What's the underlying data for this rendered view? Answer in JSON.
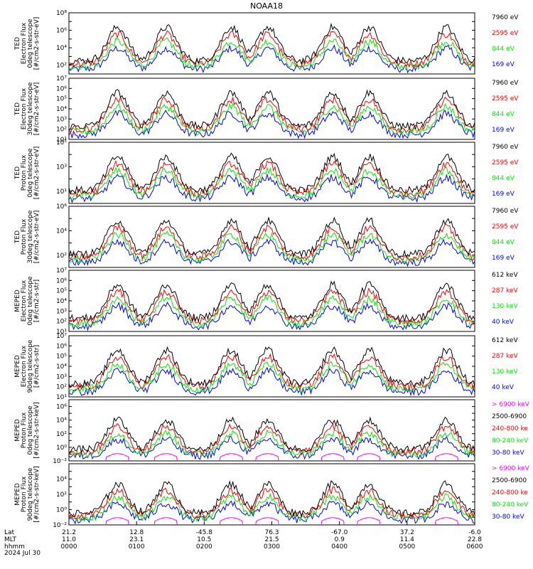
{
  "title": "NOAA18",
  "colors": {
    "black": "#000000",
    "red": "#ff0000",
    "green": "#00ee00",
    "blue": "#0000ff",
    "magenta": "#ff00ff"
  },
  "chart_data": {
    "type": "line",
    "title": "NOAA18",
    "x_ticks": [
      {
        "lat": "21.2",
        "mlt": "11.0",
        "hhmm": "0000"
      },
      {
        "lat": "12.8",
        "mlt": "23.1",
        "hhmm": "0100"
      },
      {
        "lat": "-45.8",
        "mlt": "10.5",
        "hhmm": "0200"
      },
      {
        "lat": "76.3",
        "mlt": "21.5",
        "hhmm": "0300"
      },
      {
        "lat": "-67.0",
        "mlt": "0.9",
        "hhmm": "0400"
      },
      {
        "lat": "37.2",
        "mlt": "11.4",
        "hhmm": "0500"
      },
      {
        "lat": "-6.0",
        "mlt": "22.8",
        "hhmm": "0600"
      }
    ],
    "x_row_labels": [
      "Lat",
      "MLT",
      "hhmm"
    ],
    "date": "2024 Jul 30",
    "xlim": [
      "0000",
      "0600"
    ],
    "panels": [
      {
        "ylabel": [
          "TED",
          "Electron Flux",
          "0deg telescope",
          "[#/cm2-s-str-eV]"
        ],
        "ymin_exp": 1,
        "ymax_exp": 8,
        "tick_labels": [
          "10²",
          "10⁴",
          "10⁶",
          "10⁸"
        ],
        "tick_exps": [
          2,
          4,
          6,
          8
        ],
        "series": [
          {
            "name": "7960 eV",
            "color": "black"
          },
          {
            "name": "2595 eV",
            "color": "red"
          },
          {
            "name": "844 eV",
            "color": "green"
          },
          {
            "name": "169 eV",
            "color": "blue"
          }
        ]
      },
      {
        "ylabel": [
          "TED",
          "Electron Flux",
          "30deg telescope",
          "[#/cm2-s-str-eV]"
        ],
        "ymin_exp": 1,
        "ymax_exp": 7,
        "tick_labels": [
          "10¹",
          "10²",
          "10³",
          "10⁴",
          "10⁵",
          "10⁶",
          "10⁷"
        ],
        "tick_exps": [
          1,
          2,
          3,
          4,
          5,
          6,
          7
        ],
        "series": [
          {
            "name": "7960 eV",
            "color": "black"
          },
          {
            "name": "2595 eV",
            "color": "red"
          },
          {
            "name": "844 eV",
            "color": "green"
          },
          {
            "name": "169 eV",
            "color": "blue"
          }
        ]
      },
      {
        "ylabel": [
          "TED",
          "Proton Flux",
          "0deg telescope",
          "[#/cm2-s-str-eV]"
        ],
        "ymin_exp": 0,
        "ymax_exp": 5,
        "tick_labels": [
          "10¹",
          "10³",
          "10⁵"
        ],
        "tick_exps": [
          1,
          3,
          5
        ],
        "series": [
          {
            "name": "7960 eV",
            "color": "black"
          },
          {
            "name": "2595 eV",
            "color": "red"
          },
          {
            "name": "844 eV",
            "color": "green"
          },
          {
            "name": "169 eV",
            "color": "blue"
          }
        ]
      },
      {
        "ylabel": [
          "TED",
          "Proton Flux",
          "30deg telescope",
          "[#/cm2-s-str-eV]"
        ],
        "ymin_exp": 1,
        "ymax_exp": 6,
        "tick_labels": [
          "10²",
          "10⁴",
          "10⁶"
        ],
        "tick_exps": [
          2,
          4,
          6
        ],
        "series": [
          {
            "name": "7960 eV",
            "color": "black"
          },
          {
            "name": "2595 eV",
            "color": "red"
          },
          {
            "name": "844 eV",
            "color": "green"
          },
          {
            "name": "169 eV",
            "color": "blue"
          }
        ]
      },
      {
        "ylabel": [
          "MEPED",
          "Electron Flux",
          "0deg telescope",
          "[#/cm2-s-str]"
        ],
        "ymin_exp": 1,
        "ymax_exp": 7,
        "tick_labels": [
          "10¹",
          "10²",
          "10³",
          "10⁴",
          "10⁵",
          "10⁶",
          "10⁷"
        ],
        "tick_exps": [
          1,
          2,
          3,
          4,
          5,
          6,
          7
        ],
        "series": [
          {
            "name": "612 keV",
            "color": "black"
          },
          {
            "name": "287 keV",
            "color": "red"
          },
          {
            "name": "130 keV",
            "color": "green"
          },
          {
            "name": "40 keV",
            "color": "blue"
          }
        ]
      },
      {
        "ylabel": [
          "MEPED",
          "Electron Flux",
          "90deg telescope",
          "[#/cm2-s-str]"
        ],
        "ymin_exp": 1,
        "ymax_exp": 7,
        "tick_labels": [
          "10¹",
          "10²",
          "10³",
          "10⁴",
          "10⁵",
          "10⁶",
          "10⁷"
        ],
        "tick_exps": [
          1,
          2,
          3,
          4,
          5,
          6,
          7
        ],
        "series": [
          {
            "name": "612 keV",
            "color": "black"
          },
          {
            "name": "287 keV",
            "color": "red"
          },
          {
            "name": "130 keV",
            "color": "green"
          },
          {
            "name": "40 keV",
            "color": "blue"
          }
        ]
      },
      {
        "ylabel": [
          "MEPED",
          "Proton Flux",
          "0deg telescope",
          "[#/cm2-s-str-keV]"
        ],
        "ymin_exp": -2,
        "ymax_exp": 7,
        "tick_labels": [
          "10⁻²",
          "10⁰",
          "10²",
          "10⁴",
          "10⁶"
        ],
        "tick_exps": [
          -2,
          0,
          2,
          4,
          6
        ],
        "series": [
          {
            "name": "> 6900 keV",
            "color": "magenta"
          },
          {
            "name": "2500-6900",
            "color": "black"
          },
          {
            "name": "240-800 ke",
            "color": "red"
          },
          {
            "name": "80-240 keV",
            "color": "green"
          },
          {
            "name": "30-80 keV",
            "color": "blue"
          }
        ]
      },
      {
        "ylabel": [
          "MEPED",
          "Proton Flux",
          "90deg telescope",
          "[#/cm2-s-str-keV]"
        ],
        "ymin_exp": -2,
        "ymax_exp": 6,
        "tick_labels": [
          "10⁻²",
          "10⁰",
          "10²",
          "10⁴"
        ],
        "tick_exps": [
          -2,
          0,
          2,
          4
        ],
        "series": [
          {
            "name": "> 6900 keV",
            "color": "magenta"
          },
          {
            "name": "2500-6900",
            "color": "black"
          },
          {
            "name": "240-800 ke",
            "color": "red"
          },
          {
            "name": "80-240 keV",
            "color": "green"
          },
          {
            "name": "30-80 keV",
            "color": "blue"
          }
        ]
      }
    ]
  }
}
